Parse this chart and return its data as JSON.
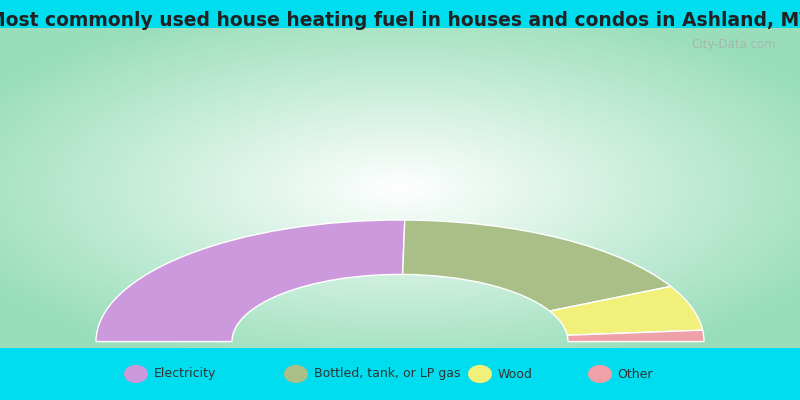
{
  "title": "Most commonly used house heating fuel in houses and condos in Ashland, MT",
  "segments": [
    {
      "label": "Electricity",
      "value": 50.5,
      "color": "#cc99dd"
    },
    {
      "label": "Bottled, tank, or LP gas",
      "value": 34.5,
      "color": "#aabf88"
    },
    {
      "label": "Wood",
      "value": 12.0,
      "color": "#f0f07a"
    },
    {
      "label": "Other",
      "value": 3.0,
      "color": "#f0a0a8"
    }
  ],
  "title_bar_color": "#00ddee",
  "legend_bar_color": "#00ddee",
  "chart_bg_center": "#ffffff",
  "chart_bg_edge": "#99ddbb",
  "title_fontsize": 13.5,
  "watermark": "City-Data.com",
  "outer_r": 0.38,
  "inner_r": 0.21
}
